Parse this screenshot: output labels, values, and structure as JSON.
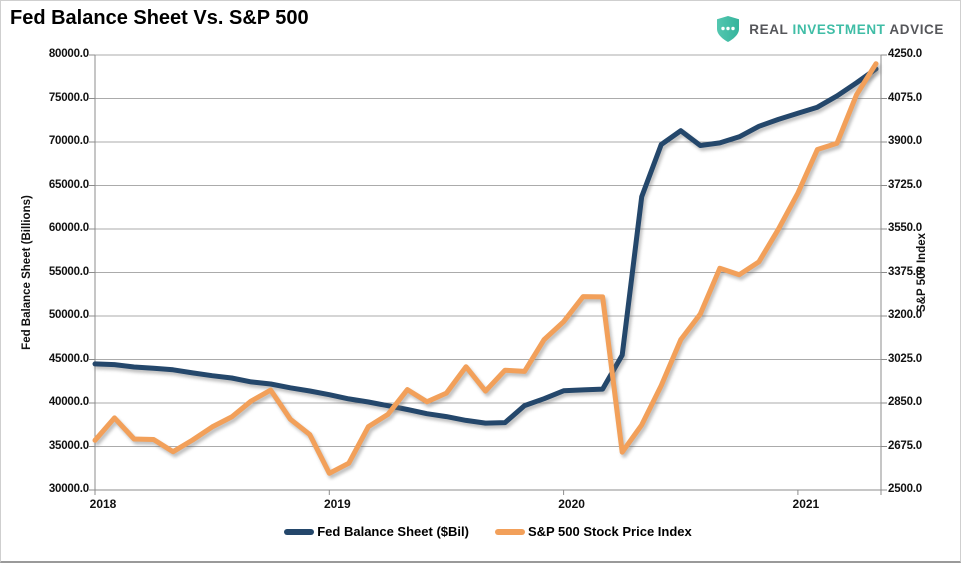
{
  "header": {
    "title": "Fed Balance Sheet Vs. S&P 500"
  },
  "brand": {
    "word1": "REAL",
    "word2": "INVESTMENT",
    "word3": "ADVICE",
    "teal": "#3fbda6",
    "gray": "#55565a",
    "shield_icon": "shield-with-three-dots"
  },
  "chart_data": {
    "type": "line",
    "title": "Fed Balance Sheet Vs. S&P 500",
    "grid": true,
    "legend_position": "bottom",
    "x_axis": {
      "tick_labels": [
        "2018",
        "2019",
        "2020",
        "2021"
      ],
      "months_per_tick": 12,
      "total_months": 40,
      "range_note": "monthly points Jan 2018 - May 2021"
    },
    "left_axis": {
      "label": "Fed Balance Sheet (Billions)",
      "min": 30000,
      "max": 80000,
      "step": 5000,
      "tick_labels": [
        "80000.0",
        "75000.0",
        "70000.0",
        "65000.0",
        "60000.0",
        "55000.0",
        "50000.0",
        "45000.0",
        "40000.0",
        "35000.0",
        "30000.0"
      ]
    },
    "right_axis": {
      "label": "S&P 500 Index",
      "min": 2500,
      "max": 4250,
      "step": 175,
      "tick_labels": [
        "4250.0",
        "4075.0",
        "3900.0",
        "3725.0",
        "3550.0",
        "3375.0",
        "3200.0",
        "3025.0",
        "2850.0",
        "2675.0",
        "2500.0"
      ]
    },
    "series": [
      {
        "name": "Fed Balance Sheet ($Bil)",
        "axis": "left",
        "color": "#24476b",
        "values": [
          44490,
          44410,
          44140,
          43990,
          43820,
          43460,
          43140,
          42870,
          42430,
          42180,
          41750,
          41380,
          40950,
          40470,
          40120,
          39690,
          39250,
          38770,
          38440,
          38000,
          37690,
          37750,
          39700,
          40500,
          41400,
          41500,
          41600,
          45500,
          63700,
          69700,
          71300,
          69600,
          69900,
          70600,
          71800,
          72600,
          73300,
          74000,
          75300,
          76800,
          78400
        ]
      },
      {
        "name": "S&P 500 Stock Price Index",
        "axis": "right",
        "color": "#f2a05a",
        "values": [
          2700,
          2790,
          2705,
          2703,
          2654,
          2701,
          2754,
          2794,
          2858,
          2902,
          2785,
          2723,
          2567,
          2608,
          2755,
          2804,
          2904,
          2855,
          2890,
          2996,
          2898,
          2982,
          2977,
          3105,
          3177,
          3278,
          3277,
          2652,
          2762,
          2920,
          3105,
          3208,
          3392,
          3366,
          3418,
          3549,
          3695,
          3870,
          3895,
          4090,
          4215
        ]
      }
    ]
  }
}
